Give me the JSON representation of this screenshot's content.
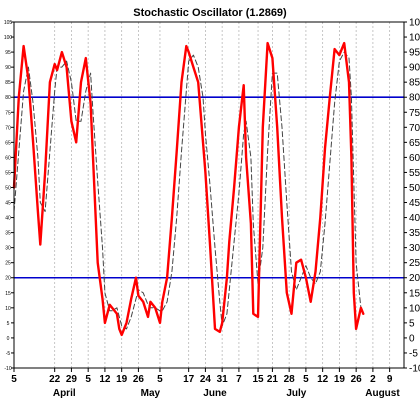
{
  "chart_data": {
    "type": "line",
    "title": "Stochastic Oscillator (1.2869)",
    "ylim": [
      -10,
      105
    ],
    "y_ticks": [
      -10,
      -5,
      0,
      5,
      10,
      15,
      20,
      25,
      30,
      35,
      40,
      45,
      50,
      55,
      60,
      65,
      70,
      75,
      80,
      85,
      90,
      95,
      100,
      105
    ],
    "y_tick_labels": [
      "-10",
      "-5",
      "0",
      "5",
      "10",
      "15",
      "20",
      "25",
      "30",
      "35",
      "40",
      "45",
      "50",
      "55",
      "60",
      "65",
      "70",
      "75",
      "80",
      "85",
      "90",
      "95",
      "100",
      "105"
    ],
    "hlines": [
      80,
      20
    ],
    "x_ticks": [
      {
        "label": "5",
        "day": 0
      },
      {
        "label": "22",
        "day": 17
      },
      {
        "label": "29",
        "day": 24
      },
      {
        "label": "5",
        "day": 31
      },
      {
        "label": "12",
        "day": 38
      },
      {
        "label": "19",
        "day": 45
      },
      {
        "label": "26",
        "day": 52
      },
      {
        "label": "5",
        "day": 61
      },
      {
        "label": "17",
        "day": 73
      },
      {
        "label": "24",
        "day": 80
      },
      {
        "label": "31",
        "day": 87
      },
      {
        "label": "7",
        "day": 94
      },
      {
        "label": "15",
        "day": 102
      },
      {
        "label": "21",
        "day": 108
      },
      {
        "label": "28",
        "day": 115
      },
      {
        "label": "5",
        "day": 122
      },
      {
        "label": "12",
        "day": 129
      },
      {
        "label": "19",
        "day": 136
      },
      {
        "label": "26",
        "day": 143
      },
      {
        "label": "2",
        "day": 150
      },
      {
        "label": "9",
        "day": 157
      }
    ],
    "x_range": [
      0,
      163
    ],
    "months": [
      {
        "label": "April",
        "day": 21
      },
      {
        "label": "May",
        "day": 57
      },
      {
        "label": "June",
        "day": 84
      },
      {
        "label": "July",
        "day": 118
      },
      {
        "label": "August",
        "day": 154
      }
    ],
    "grid": true,
    "series": [
      {
        "role": "k",
        "color": "#ff0000",
        "x": [
          0,
          2,
          4,
          6,
          8,
          10,
          11,
          13,
          15,
          17,
          18,
          20,
          22,
          24,
          26,
          28,
          30,
          32,
          33,
          35,
          37,
          38,
          40,
          41,
          43,
          44,
          45,
          47,
          49,
          51,
          52,
          54,
          56,
          57,
          59,
          61,
          62,
          64,
          66,
          68,
          70,
          72,
          73,
          75,
          77,
          79,
          80,
          82,
          84,
          86,
          87,
          89,
          90,
          92,
          94,
          96,
          97,
          99,
          100,
          102,
          104,
          106,
          108,
          110,
          112,
          114,
          116,
          118,
          120,
          122,
          124,
          126,
          128,
          130,
          132,
          134,
          136,
          138,
          140,
          141,
          142,
          143,
          145,
          146
        ],
        "values": [
          50,
          80,
          97,
          86,
          65,
          42,
          31,
          55,
          85,
          91,
          89,
          95,
          90,
          72,
          65,
          85,
          93,
          78,
          60,
          25,
          13,
          5,
          11,
          10,
          8,
          3,
          1,
          5,
          13,
          20,
          14,
          12,
          7,
          12,
          10,
          5,
          12,
          20,
          40,
          62,
          85,
          97,
          95,
          90,
          85,
          65,
          55,
          30,
          3,
          2,
          5,
          20,
          32,
          50,
          70,
          84,
          60,
          38,
          8,
          7,
          70,
          98,
          93,
          70,
          40,
          15,
          8,
          25,
          26,
          20,
          12,
          22,
          40,
          63,
          80,
          96,
          94,
          98,
          85,
          60,
          15,
          3,
          10,
          8
        ]
      },
      {
        "role": "d",
        "color": "#444444",
        "dashed": true,
        "x": [
          0,
          2,
          4,
          6,
          8,
          10,
          11,
          13,
          15,
          17,
          18,
          20,
          22,
          24,
          26,
          28,
          30,
          32,
          33,
          35,
          37,
          38,
          40,
          41,
          43,
          44,
          45,
          47,
          49,
          51,
          52,
          54,
          56,
          57,
          59,
          61,
          62,
          64,
          66,
          68,
          70,
          72,
          73,
          75,
          77,
          79,
          80,
          82,
          84,
          86,
          87,
          89,
          90,
          92,
          94,
          96,
          97,
          99,
          100,
          102,
          104,
          106,
          108,
          110,
          112,
          114,
          116,
          118,
          120,
          122,
          124,
          126,
          128,
          130,
          132,
          134,
          136,
          138,
          140,
          141,
          142,
          143,
          145,
          146
        ],
        "values": [
          42,
          62,
          82,
          90,
          78,
          60,
          45,
          42,
          62,
          82,
          90,
          90,
          92,
          85,
          72,
          72,
          82,
          88,
          75,
          52,
          30,
          15,
          9,
          9,
          10,
          7,
          4,
          3,
          7,
          13,
          16,
          15,
          11,
          10,
          10,
          9,
          9,
          12,
          22,
          40,
          62,
          82,
          92,
          94,
          90,
          80,
          68,
          50,
          30,
          12,
          4,
          8,
          16,
          32,
          48,
          68,
          72,
          60,
          38,
          18,
          30,
          62,
          88,
          88,
          70,
          45,
          22,
          16,
          20,
          24,
          20,
          18,
          22,
          38,
          58,
          78,
          92,
          95,
          93,
          80,
          52,
          25,
          10,
          8
        ]
      }
    ]
  }
}
